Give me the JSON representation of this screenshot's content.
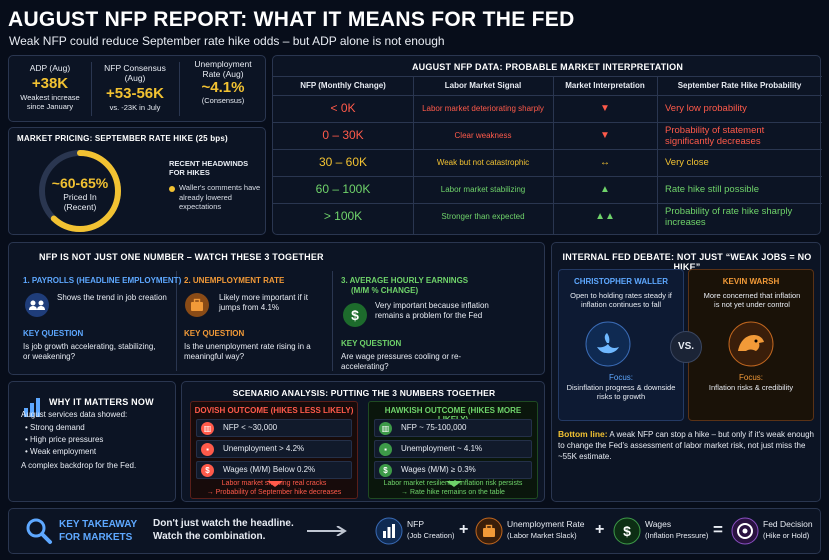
{
  "title": "AUGUST NFP REPORT: WHAT IT MEANS FOR THE FED",
  "subtitle": "Weak NFP could reduce September rate hike odds – but ADP alone is not enough",
  "stats": [
    {
      "label": "ADP (Aug)",
      "value": "+38K",
      "note": "Weakest increase since January"
    },
    {
      "label": "NFP Consensus (Aug)",
      "value": "+53-56K",
      "note": "vs. -23K in July"
    },
    {
      "label": "Unemployment Rate (Aug)",
      "value": "~4.1%",
      "note": "(Consensus)"
    }
  ],
  "pricing": {
    "title": "MARKET PRICING: SEPTEMBER RATE HIKE (25 bps)",
    "value": "~60-65%",
    "sub": "Priced In (Recent)",
    "probability": 0.62,
    "headwinds_title": "RECENT HEADWINDS FOR HIKES",
    "headwinds_text": "Waller's comments have already lowered expectations"
  },
  "table": {
    "title": "AUGUST NFP DATA: PROBABLE MARKET INTERPRETATION",
    "headers": [
      "NFP (Monthly Change)",
      "Labor Market Signal",
      "Market Interpretation",
      "September Rate Hike Probability"
    ],
    "rows": [
      {
        "range": "< 0K",
        "signal": "Labor market deteriorating sharply",
        "symbol": "▼",
        "prob": "Very low probability",
        "color": "#ff5a4a"
      },
      {
        "range": "0 – 30K",
        "signal": "Clear weakness",
        "symbol": "▼",
        "prob": "Probability of statement significantly decreases",
        "color": "#ff5a4a"
      },
      {
        "range": "30 – 60K",
        "signal": "Weak but not catastrophic",
        "symbol": "↔",
        "prob": "Very close",
        "color": "#f2c232"
      },
      {
        "range": "60 – 100K",
        "signal": "Labor market stabilizing",
        "symbol": "▲",
        "prob": "Rate hike still possible",
        "color": "#6fd36a"
      },
      {
        "range": "> 100K",
        "signal": "Stronger than expected",
        "symbol": "▲▲",
        "prob": "Probability of rate hike sharply increases",
        "color": "#6fd36a"
      }
    ]
  },
  "three": {
    "title": "NFP IS NOT JUST ONE NUMBER – WATCH THESE 3 TOGETHER",
    "items": [
      {
        "head": "1. PAYROLLS (HEADLINE EMPLOYMENT)",
        "desc": "Shows the trend in job creation",
        "kq": "KEY QUESTION",
        "q": "Is job growth accelerating, stabilizing, or weakening?"
      },
      {
        "head": "2. UNEMPLOYMENT RATE",
        "desc": "Likely more important if it jumps from 4.1%",
        "kq": "KEY QUESTION",
        "q": "Is the unemployment rate rising in a meaningful way?"
      },
      {
        "head": "3. AVERAGE HOURLY EARNINGS",
        "head2": "(M/M % CHANGE)",
        "desc": "Very important because inflation remains a problem for the Fed",
        "kq": "KEY QUESTION",
        "q": "Are wage pressures cooling or re-accelerating?"
      }
    ]
  },
  "debate": {
    "title": "INTERNAL FED DEBATE: NOT JUST “WEAK JOBS = NO HIKE”",
    "left": {
      "name": "CHRISTOPHER WALLER",
      "desc": "Open to holding rates steady if inflation continues to fall",
      "focus_label": "Focus:",
      "focus": "Disinflation progress & downside risks to growth"
    },
    "vs": "VS.",
    "right": {
      "name": "KEVIN WARSH",
      "desc": "More concerned that inflation is not yet under control",
      "focus_label": "Focus:",
      "focus": "Inflation risks & credibility"
    },
    "bottom_label": "Bottom line:",
    "bottom_text": "A weak NFP can stop a hike – but only if it's weak enough to change the Fed's assessment of labor market risk, not just miss the ~55K estimate."
  },
  "why": {
    "title": "WHY IT MATTERS NOW",
    "intro": "August services data showed:",
    "bullets": [
      "Strong demand",
      "High price pressures",
      "Weak employment"
    ],
    "outro": "A complex backdrop for the Fed."
  },
  "scenario": {
    "title": "SCENARIO ANALYSIS: PUTTING THE 3 NUMBERS TOGETHER",
    "dovish": {
      "head": "DOVISH OUTCOME (HIKES LESS LIKELY)",
      "rows": [
        "NFP < ~30,000",
        "Unemployment > 4.2%",
        "Wages (M/M) Below 0.2%"
      ],
      "result": "Labor market showing real cracks",
      "result2": "→ Probability of September hike decreases"
    },
    "hawkish": {
      "head": "HAWKISH OUTCOME (HIKES MORE LIKELY)",
      "rows": [
        "NFP ~ 75-100,000",
        "Unemployment ~ 4.1%",
        "Wages (M/M) ≥ 0.3%"
      ],
      "result": "Labor market resilient & inflation risk persists",
      "result2": "→ Rate hike remains on the table"
    }
  },
  "takeaway": {
    "label1": "KEY TAKEAWAY",
    "label2": "FOR MARKETS",
    "text1": "Don't just watch the headline.",
    "text2": "Watch the combination.",
    "parts": [
      {
        "name": "NFP",
        "sub": "(Job Creation)"
      },
      {
        "name": "Unemployment Rate",
        "sub": "(Labor Market Slack)"
      },
      {
        "name": "Wages",
        "sub": "(Inflation Pressure)"
      },
      {
        "name": "Fed Decision",
        "sub": "(Hike or Hold)"
      }
    ],
    "plus": "+",
    "eq": "="
  }
}
